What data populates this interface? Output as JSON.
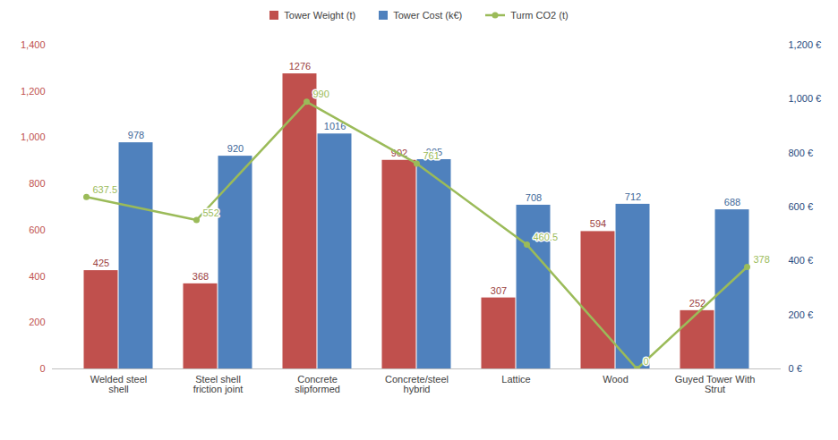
{
  "chart_data": {
    "type": "bar",
    "categories": [
      "Welded steel shell",
      "Steel shell friction joint",
      "Concrete slipformed",
      "Concrete/steel hybrid",
      "Lattice",
      "Wood",
      "Guyed Tower With Strut"
    ],
    "series": [
      {
        "name": "Tower Weight (t)",
        "color": "#c0504d",
        "values": [
          425,
          368,
          1276,
          902,
          307,
          594,
          252
        ]
      },
      {
        "name": "Tower Cost (k€)",
        "color": "#4f81bd",
        "values": [
          978,
          920,
          1016,
          905,
          708,
          712,
          688
        ]
      },
      {
        "name": "Turm CO2 (t)",
        "color": "#9bbb59",
        "type": "line",
        "marker": "circle",
        "axis": "y2",
        "values": [
          637.5,
          552,
          990,
          761,
          460.5,
          0,
          378
        ]
      }
    ],
    "ylim": [
      0,
      1400
    ],
    "yticks": [
      0,
      200,
      400,
      600,
      800,
      {
        "value": 1000,
        "label": "1,000"
      },
      {
        "value": 1200,
        "label": "1,200"
      },
      {
        "value": 1400,
        "label": "1,400"
      }
    ],
    "y2lim": [
      0,
      1200
    ],
    "y2ticks": [
      {
        "value": 0,
        "label": "0 €"
      },
      {
        "value": 200,
        "label": "200 €"
      },
      {
        "value": 400,
        "label": "400 €"
      },
      {
        "value": 600,
        "label": "600 €"
      },
      {
        "value": 800,
        "label": "800 €"
      },
      {
        "value": 1000,
        "label": "1,000 €"
      },
      {
        "value": 1200,
        "label": "1,200 €"
      }
    ],
    "grid": false,
    "legend": "top",
    "data_labels": true
  }
}
